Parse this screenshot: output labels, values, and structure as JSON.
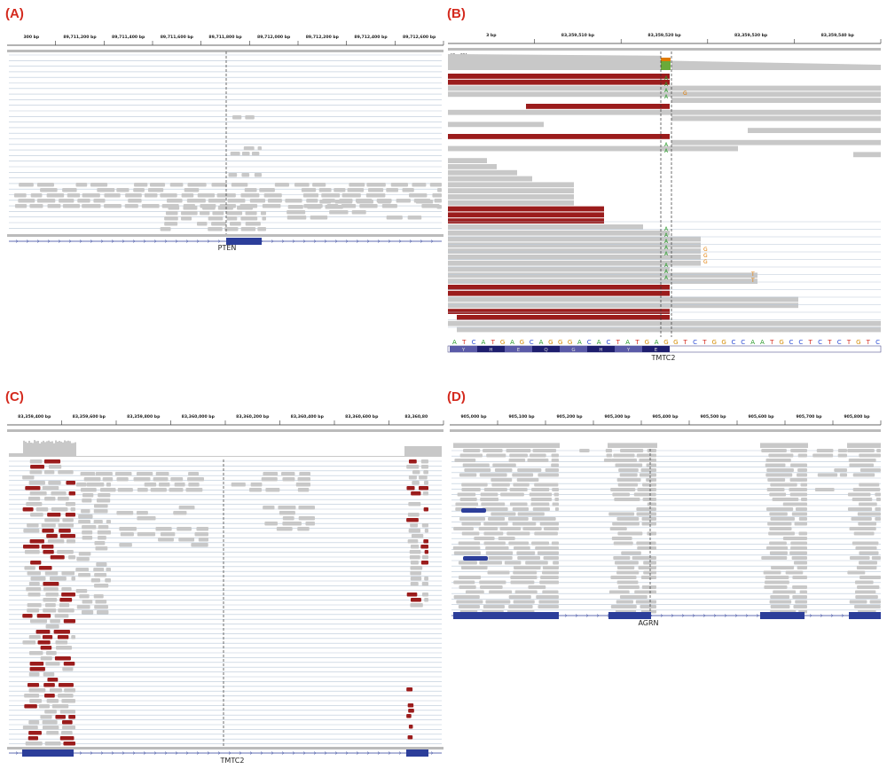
{
  "panels": [
    {
      "label": "(A)",
      "ruler": [
        "300 bp",
        "89,711,200 bp",
        "89,711,400 bp",
        "89,711,600 bp",
        "89,711,800 bp",
        "89,712,000 bp",
        "89,712,200 bp",
        "89,712,400 bp",
        "89,712,600 bp"
      ],
      "gene": "PTEN"
    },
    {
      "label": "(B)",
      "ruler": [
        "3 bp",
        "83,359,510 bp",
        "83,359,520 bp",
        "83,359,530 bp",
        "83,359,540 bp"
      ],
      "range": "[0 - 49]",
      "alt_alleles": [
        "A",
        "A",
        "A",
        "A",
        "A",
        "A",
        "A",
        "A",
        "A",
        "A",
        "A",
        "A",
        "A",
        "A"
      ],
      "mismatches": [
        "G",
        "G",
        "G",
        "G",
        "T",
        "T"
      ],
      "sequence": [
        "A",
        "T",
        "C",
        "A",
        "T",
        "G",
        "A",
        "G",
        "C",
        "A",
        "G",
        "G",
        "G",
        "A",
        "C",
        "A",
        "C",
        "T",
        "A",
        "T",
        "G",
        "A",
        "G",
        "G",
        "T",
        "C",
        "T",
        "G",
        "G",
        "C",
        "C",
        "A",
        "A",
        "T",
        "G",
        "C",
        "C",
        "T",
        "C",
        "T",
        "C",
        "T",
        "G",
        "T",
        "C"
      ],
      "amino_acids": [
        "Y",
        "H",
        "E",
        "Q",
        "G",
        "H",
        "Y",
        "E"
      ],
      "gene": "TMTC2"
    },
    {
      "label": "(C)",
      "ruler": [
        "83,359,400 bp",
        "83,359,600 bp",
        "83,359,800 bp",
        "83,360,000 bp",
        "83,360,200 bp",
        "83,360,400 bp",
        "83,360,600 bp",
        "83,360,80"
      ],
      "gene": "TMTC2"
    },
    {
      "label": "(D)",
      "ruler": [
        "905,000 bp",
        "905,100 bp",
        "905,200 bp",
        "905,300 bp",
        "905,400 bp",
        "905,500 bp",
        "905,600 bp",
        "905,700 bp",
        "905,800 bp"
      ],
      "gene": "AGRN"
    }
  ]
}
